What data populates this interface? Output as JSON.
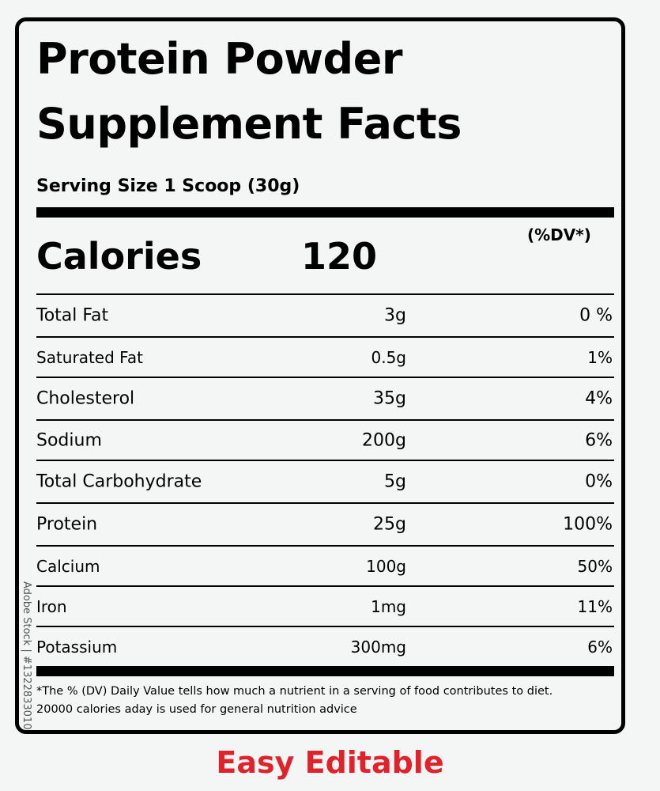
{
  "label": {
    "title_line1": "Protein Powder",
    "title_line2": "Supplement Facts",
    "serving_size": "Serving Size  1 Scoop (30g)",
    "calories_label": "Calories",
    "calories_value": "120",
    "dv_header": "(%DV*)",
    "nutrients": [
      {
        "name": "Total Fat",
        "amount": "3g",
        "dv": "0 %"
      },
      {
        "name": "Saturated Fat",
        "amount": "0.5g",
        "dv": "1%"
      },
      {
        "name": "Cholesterol",
        "amount": "35g",
        "dv": "4%"
      },
      {
        "name": "Sodium",
        "amount": "200g",
        "dv": "6%"
      },
      {
        "name": "Total Carbohydrate",
        "amount": "5g",
        "dv": "0%"
      },
      {
        "name": "Protein",
        "amount": "25g",
        "dv": "100%"
      },
      {
        "name": "Calcium",
        "amount": "100g",
        "dv": "50%"
      },
      {
        "name": "Iron",
        "amount": "1mg",
        "dv": "11%"
      },
      {
        "name": "Potassium",
        "amount": "300mg",
        "dv": "6%"
      }
    ],
    "footnote_line1": "*The % (DV) Daily Value tells how much a nutrient in a serving of food contributes to diet.",
    "footnote_line2": "20000 calories aday is used for general nutrition advice"
  },
  "side_watermark": "Adobe Stock | #1322833010",
  "caption": "Easy Editable",
  "colors": {
    "background": "#f4f5f5",
    "ink": "#000000",
    "caption": "#e0232b"
  }
}
